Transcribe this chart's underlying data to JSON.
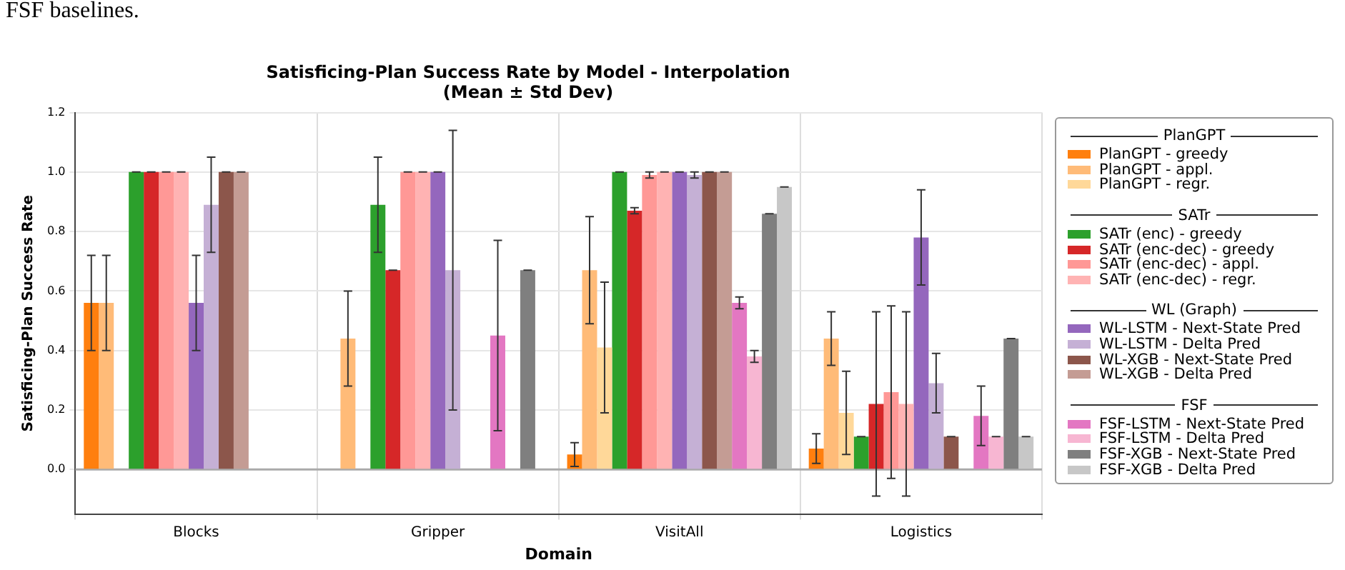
{
  "chart_data": {
    "type": "bar",
    "title": "Satisficing-Plan Success Rate by Model - Interpolation",
    "subtitle": "(Mean ± Std Dev)",
    "xlabel": "Domain",
    "ylabel": "Satisficing-Plan Success Rate",
    "categories": [
      "Blocks",
      "Gripper",
      "VisitAll",
      "Logistics"
    ],
    "ylim": [
      -0.15,
      1.2
    ],
    "yticks": [
      {
        "value": 0,
        "label": "0.0"
      },
      {
        "value": 0.2,
        "label": "0.2"
      },
      {
        "value": 0.4,
        "label": "0.4"
      },
      {
        "value": 0.6,
        "label": "0.6"
      },
      {
        "value": 0.8,
        "label": "0.8"
      },
      {
        "value": 1,
        "label": "1.0"
      },
      {
        "value": 1.2,
        "label": "1.2"
      }
    ],
    "grid": true,
    "legend": "right",
    "ref_lines": [
      {
        "axis": "y",
        "value": 0,
        "color": "#aaaaaa"
      }
    ],
    "annotations": [
      "FSF baselines.",
      "PlanGPT",
      "SATr",
      "WL (Graph)",
      "FSF"
    ],
    "series": [
      {
        "name": "PlanGPT - greedy",
        "color": "#ff7f0e",
        "values": [
          0.56,
          0,
          0.05,
          0.07
        ],
        "errors": [
          0.16,
          null,
          0.04,
          0.05
        ]
      },
      {
        "name": "PlanGPT - appl.",
        "color": "#ffbb78",
        "values": [
          0.56,
          0.44,
          0.67,
          0.44
        ],
        "errors": [
          0.16,
          0.16,
          0.18,
          0.09
        ]
      },
      {
        "name": "PlanGPT - regr.",
        "color": "#ffd899",
        "values": [
          0,
          0,
          0.41,
          0.19
        ],
        "errors": [
          null,
          null,
          0.22,
          0.14
        ]
      },
      {
        "name": "SATr (enc) - greedy",
        "color": "#2ca02c",
        "values": [
          1,
          0.89,
          1,
          0.11
        ],
        "errors": [
          0,
          0.16,
          0,
          0
        ]
      },
      {
        "name": "SATr (enc-dec) - greedy",
        "color": "#d62728",
        "values": [
          1,
          0.67,
          0.87,
          0.22
        ],
        "errors": [
          0,
          0,
          0.01,
          0.31
        ]
      },
      {
        "name": "SATr (enc-dec) - appl.",
        "color": "#ff9896",
        "values": [
          1,
          1,
          0.99,
          0.26
        ],
        "errors": [
          0,
          0,
          0.01,
          0.29
        ]
      },
      {
        "name": "SATr (enc-dec) - regr.",
        "color": "#ffb3b3",
        "values": [
          1,
          1,
          1,
          0.22
        ],
        "errors": [
          0,
          0,
          0,
          0.31
        ]
      },
      {
        "name": "WL-LSTM - Next-State Pred",
        "color": "#9467bd",
        "values": [
          0.56,
          1,
          1,
          0.78
        ],
        "errors": [
          0.16,
          0,
          0,
          0.16
        ]
      },
      {
        "name": "WL-LSTM - Delta Pred",
        "color": "#c5b0d5",
        "values": [
          0.89,
          0.67,
          0.99,
          0.29
        ],
        "errors": [
          0.16,
          0.47,
          0.01,
          0.1
        ]
      },
      {
        "name": "WL-XGB - Next-State Pred",
        "color": "#8c564b",
        "values": [
          1,
          0,
          1,
          0.11
        ],
        "errors": [
          0,
          null,
          0,
          0
        ]
      },
      {
        "name": "WL-XGB - Delta Pred",
        "color": "#c49c94",
        "values": [
          1,
          0,
          1,
          0
        ],
        "errors": [
          0,
          null,
          0,
          null
        ]
      },
      {
        "name": "FSF-LSTM - Next-State Pred",
        "color": "#e377c2",
        "values": [
          0,
          0.45,
          0.56,
          0.18
        ],
        "errors": [
          null,
          0.32,
          0.02,
          0.1
        ]
      },
      {
        "name": "FSF-LSTM - Delta Pred",
        "color": "#f7b6d2",
        "values": [
          0,
          0,
          0.38,
          0.11
        ],
        "errors": [
          null,
          null,
          0.02,
          0
        ]
      },
      {
        "name": "FSF-XGB - Next-State Pred",
        "color": "#7f7f7f",
        "values": [
          0,
          0.67,
          0.86,
          0.44
        ],
        "errors": [
          null,
          0,
          0,
          0
        ]
      },
      {
        "name": "FSF-XGB - Delta Pred",
        "color": "#c7c7c7",
        "values": [
          0,
          0,
          0.95,
          0.11
        ],
        "errors": [
          null,
          null,
          0,
          0
        ]
      }
    ]
  }
}
